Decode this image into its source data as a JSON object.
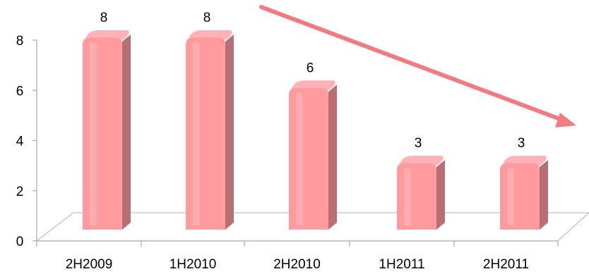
{
  "chart_data": {
    "type": "bar",
    "title": "",
    "xlabel": "",
    "ylabel": "",
    "categories": [
      "2H2009",
      "1H2010",
      "2H2010",
      "1H2011",
      "2H2011"
    ],
    "values": [
      8,
      8,
      6,
      3,
      3
    ],
    "data_labels": [
      "8",
      "8",
      "6",
      "3",
      "3"
    ],
    "ylim": [
      0,
      8
    ],
    "yticks": [
      "0",
      "2",
      "4",
      "6",
      "8"
    ],
    "grid": false,
    "legend": "none",
    "style": "3d-cylinder",
    "annotation": "downward trend arrow",
    "colors": {
      "bar_front": "#ff9a9e",
      "bar_top": "#ffb3b6",
      "bar_side": "#b86f73",
      "arrow": "#f07b82",
      "axis": "#a6a6a6"
    }
  }
}
